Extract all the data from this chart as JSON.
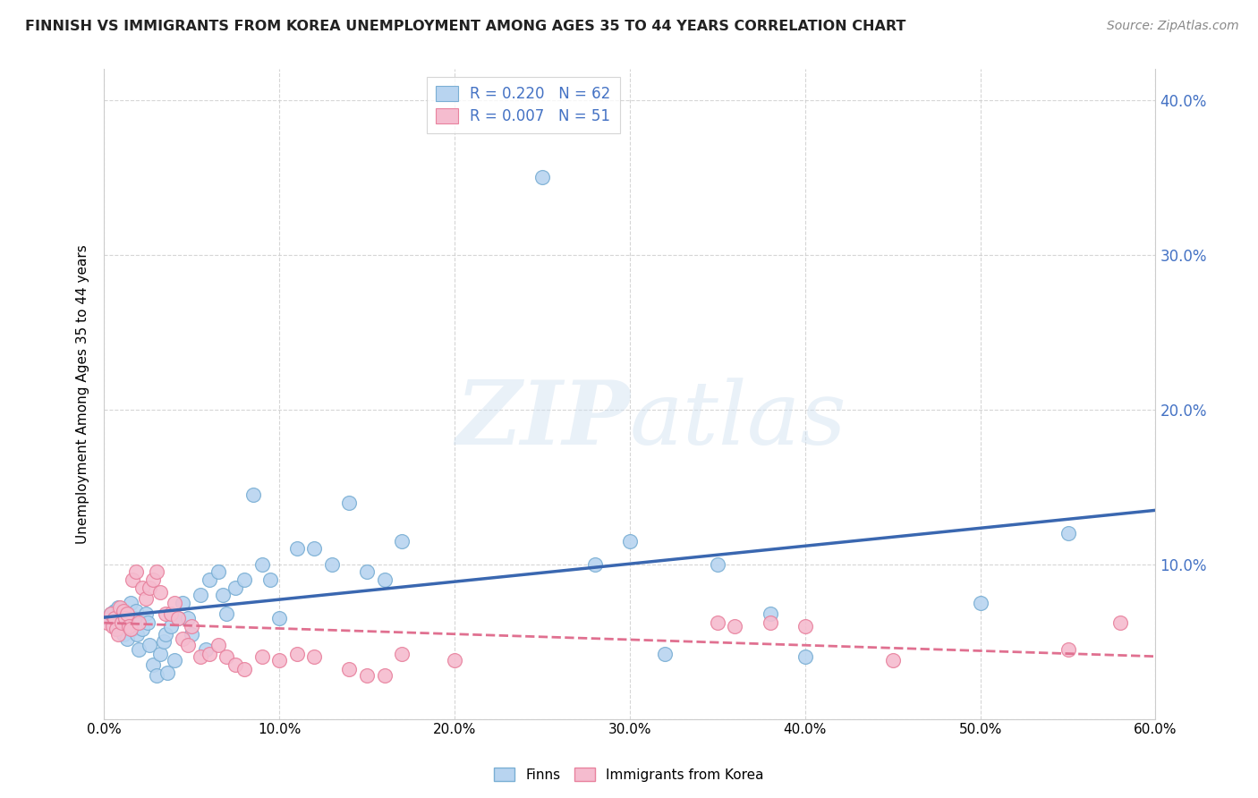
{
  "title": "FINNISH VS IMMIGRANTS FROM KOREA UNEMPLOYMENT AMONG AGES 35 TO 44 YEARS CORRELATION CHART",
  "source": "Source: ZipAtlas.com",
  "ylabel": "Unemployment Among Ages 35 to 44 years",
  "xlim": [
    0.0,
    0.6
  ],
  "ylim": [
    0.0,
    0.42
  ],
  "yticks": [
    0.0,
    0.1,
    0.2,
    0.3,
    0.4
  ],
  "xticks": [
    0.0,
    0.1,
    0.2,
    0.3,
    0.4,
    0.5,
    0.6
  ],
  "finns_color": "#b8d4f0",
  "finns_edge_color": "#7aafd4",
  "korea_color": "#f5bccf",
  "korea_edge_color": "#e8829e",
  "trendline_finns_color": "#3a67b0",
  "trendline_korea_color": "#e07090",
  "legend_r1": "R = 0.220",
  "legend_n1": "N = 62",
  "legend_r2": "R = 0.007",
  "legend_n2": "N = 51",
  "legend_text_color": "#4472c4",
  "finns_x": [
    0.002,
    0.004,
    0.005,
    0.006,
    0.007,
    0.008,
    0.009,
    0.01,
    0.011,
    0.012,
    0.013,
    0.014,
    0.015,
    0.016,
    0.017,
    0.018,
    0.019,
    0.02,
    0.022,
    0.024,
    0.025,
    0.026,
    0.028,
    0.03,
    0.032,
    0.034,
    0.035,
    0.036,
    0.038,
    0.04,
    0.042,
    0.045,
    0.048,
    0.05,
    0.055,
    0.058,
    0.06,
    0.065,
    0.068,
    0.07,
    0.075,
    0.08,
    0.085,
    0.09,
    0.095,
    0.1,
    0.11,
    0.12,
    0.13,
    0.14,
    0.15,
    0.16,
    0.17,
    0.25,
    0.28,
    0.3,
    0.32,
    0.35,
    0.38,
    0.4,
    0.5,
    0.55
  ],
  "finns_y": [
    0.065,
    0.068,
    0.062,
    0.07,
    0.058,
    0.072,
    0.06,
    0.065,
    0.055,
    0.068,
    0.052,
    0.06,
    0.075,
    0.058,
    0.065,
    0.07,
    0.055,
    0.045,
    0.058,
    0.068,
    0.062,
    0.048,
    0.035,
    0.028,
    0.042,
    0.05,
    0.055,
    0.03,
    0.06,
    0.038,
    0.065,
    0.075,
    0.065,
    0.055,
    0.08,
    0.045,
    0.09,
    0.095,
    0.08,
    0.068,
    0.085,
    0.09,
    0.145,
    0.1,
    0.09,
    0.065,
    0.11,
    0.11,
    0.1,
    0.14,
    0.095,
    0.09,
    0.115,
    0.35,
    0.1,
    0.115,
    0.042,
    0.1,
    0.068,
    0.04,
    0.075,
    0.12
  ],
  "korea_x": [
    0.002,
    0.004,
    0.005,
    0.006,
    0.007,
    0.008,
    0.009,
    0.01,
    0.011,
    0.012,
    0.013,
    0.014,
    0.015,
    0.016,
    0.018,
    0.02,
    0.022,
    0.024,
    0.026,
    0.028,
    0.03,
    0.032,
    0.035,
    0.038,
    0.04,
    0.042,
    0.045,
    0.048,
    0.05,
    0.055,
    0.06,
    0.065,
    0.07,
    0.075,
    0.08,
    0.09,
    0.1,
    0.11,
    0.12,
    0.14,
    0.15,
    0.16,
    0.17,
    0.2,
    0.35,
    0.36,
    0.38,
    0.4,
    0.45,
    0.55,
    0.58
  ],
  "korea_y": [
    0.062,
    0.068,
    0.06,
    0.065,
    0.058,
    0.055,
    0.072,
    0.062,
    0.07,
    0.065,
    0.068,
    0.06,
    0.058,
    0.09,
    0.095,
    0.062,
    0.085,
    0.078,
    0.085,
    0.09,
    0.095,
    0.082,
    0.068,
    0.068,
    0.075,
    0.065,
    0.052,
    0.048,
    0.06,
    0.04,
    0.042,
    0.048,
    0.04,
    0.035,
    0.032,
    0.04,
    0.038,
    0.042,
    0.04,
    0.032,
    0.028,
    0.028,
    0.042,
    0.038,
    0.062,
    0.06,
    0.062,
    0.06,
    0.038,
    0.045,
    0.062
  ]
}
